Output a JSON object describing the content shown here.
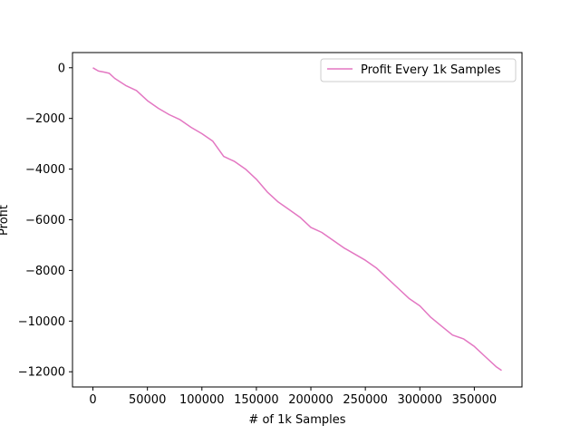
{
  "chart_data": {
    "type": "line",
    "title": "",
    "xlabel": "# of 1k Samples",
    "ylabel": "Profit",
    "xlim": [
      -18750,
      393750
    ],
    "ylim": [
      -12600,
      600
    ],
    "xticks": [
      0,
      50000,
      100000,
      150000,
      200000,
      250000,
      300000,
      350000
    ],
    "yticks": [
      0,
      -2000,
      -4000,
      -6000,
      -8000,
      -10000,
      -12000
    ],
    "xtick_labels": [
      "0",
      "50000",
      "100000",
      "150000",
      "200000",
      "250000",
      "300000",
      "350000"
    ],
    "ytick_labels": [
      "0",
      "−2000",
      "−4000",
      "−6000",
      "−8000",
      "−10000",
      "−12000"
    ],
    "grid": false,
    "legend_position": "upper-right",
    "series": [
      {
        "name": "Profit Every 1k Samples",
        "color": "#e377c2",
        "x": [
          0,
          5000,
          10000,
          15000,
          20000,
          30000,
          40000,
          50000,
          60000,
          70000,
          80000,
          90000,
          100000,
          110000,
          120000,
          130000,
          140000,
          150000,
          160000,
          170000,
          180000,
          190000,
          200000,
          210000,
          220000,
          230000,
          240000,
          250000,
          260000,
          270000,
          280000,
          290000,
          300000,
          310000,
          320000,
          330000,
          340000,
          350000,
          360000,
          370000,
          375000
        ],
        "y": [
          0,
          -130,
          -170,
          -220,
          -420,
          -700,
          -900,
          -1300,
          -1600,
          -1850,
          -2050,
          -2350,
          -2600,
          -2900,
          -3500,
          -3700,
          -4000,
          -4400,
          -4900,
          -5300,
          -5600,
          -5900,
          -6300,
          -6500,
          -6800,
          -7100,
          -7350,
          -7600,
          -7900,
          -8300,
          -8700,
          -9100,
          -9400,
          -9850,
          -10200,
          -10550,
          -10700,
          -11000,
          -11400,
          -11800,
          -11950
        ]
      }
    ]
  }
}
